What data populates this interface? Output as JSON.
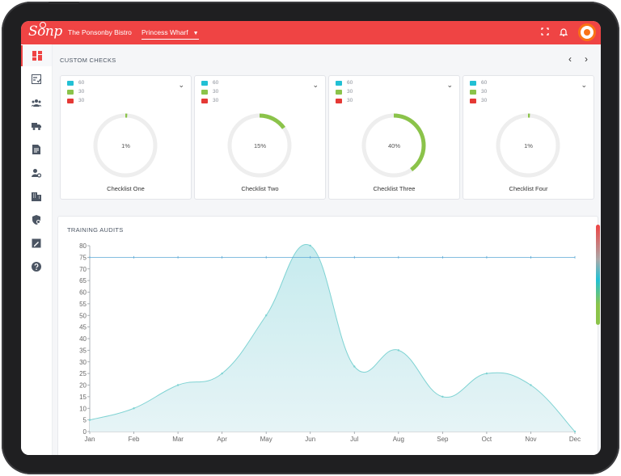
{
  "app": {
    "brand": "Sonp",
    "venue": "The Ponsonby Bistro",
    "location": "Princess Wharf",
    "icons": [
      "expand-icon",
      "bell-icon"
    ],
    "accent": "#ef4444"
  },
  "sidebar": {
    "items": [
      {
        "icon": "dashboard-icon",
        "active": true
      },
      {
        "icon": "checklist-icon"
      },
      {
        "icon": "users-icon"
      },
      {
        "icon": "truck-icon"
      },
      {
        "icon": "document-icon"
      },
      {
        "icon": "user-settings-icon"
      },
      {
        "icon": "building-icon"
      },
      {
        "icon": "shield-icon"
      },
      {
        "icon": "edit-note-icon"
      },
      {
        "icon": "help-icon"
      }
    ]
  },
  "custom_checks": {
    "title": "CUSTOM CHECKS",
    "legend_colors": [
      "#22c0d4",
      "#8bc34a",
      "#e53935"
    ],
    "cards": [
      {
        "name": "Checklist One",
        "legend": [
          "60",
          "30",
          "30"
        ],
        "percent_label": "1%",
        "percent": 1
      },
      {
        "name": "Checklist Two",
        "legend": [
          "60",
          "30",
          "30"
        ],
        "percent_label": "15%",
        "percent": 15
      },
      {
        "name": "Checklist Three",
        "legend": [
          "60",
          "30",
          "30"
        ],
        "percent_label": "40%",
        "percent": 40
      },
      {
        "name": "Checklist Four",
        "legend": [
          "60",
          "30",
          "30"
        ],
        "percent_label": "1%",
        "percent": 1
      }
    ]
  },
  "training_audits": {
    "title": "TRAINING AUDITS"
  },
  "chart_data": {
    "type": "area",
    "categories": [
      "Jan",
      "Feb",
      "Mar",
      "Apr",
      "May",
      "Jun",
      "Jul",
      "Aug",
      "Sep",
      "Oct",
      "Nov",
      "Dec"
    ],
    "series": [
      {
        "values": [
          5,
          10,
          20,
          25,
          50,
          80,
          28,
          35,
          15,
          25,
          20,
          0
        ],
        "color": "#7fd3d3"
      }
    ],
    "reference_line": 75,
    "ylim": [
      0,
      80
    ],
    "yticks": [
      0,
      5,
      10,
      15,
      20,
      25,
      30,
      35,
      40,
      45,
      50,
      55,
      60,
      65,
      70,
      75,
      80
    ],
    "grid": false,
    "legend": "none"
  }
}
